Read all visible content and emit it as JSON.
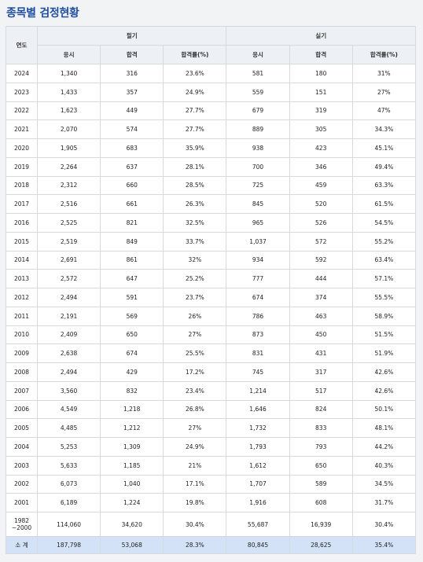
{
  "title": "종목별 검정현황",
  "header": {
    "year": "연도",
    "written": "필기",
    "practical": "실기",
    "applicants": "응시",
    "passed": "합격",
    "rate": "합격률(%)"
  },
  "rows": [
    {
      "year": "2024",
      "w_apply": "1,340",
      "w_pass": "316",
      "w_rate": "23.6%",
      "p_apply": "581",
      "p_pass": "180",
      "p_rate": "31%"
    },
    {
      "year": "2023",
      "w_apply": "1,433",
      "w_pass": "357",
      "w_rate": "24.9%",
      "p_apply": "559",
      "p_pass": "151",
      "p_rate": "27%"
    },
    {
      "year": "2022",
      "w_apply": "1,623",
      "w_pass": "449",
      "w_rate": "27.7%",
      "p_apply": "679",
      "p_pass": "319",
      "p_rate": "47%"
    },
    {
      "year": "2021",
      "w_apply": "2,070",
      "w_pass": "574",
      "w_rate": "27.7%",
      "p_apply": "889",
      "p_pass": "305",
      "p_rate": "34.3%"
    },
    {
      "year": "2020",
      "w_apply": "1,905",
      "w_pass": "683",
      "w_rate": "35.9%",
      "p_apply": "938",
      "p_pass": "423",
      "p_rate": "45.1%"
    },
    {
      "year": "2019",
      "w_apply": "2,264",
      "w_pass": "637",
      "w_rate": "28.1%",
      "p_apply": "700",
      "p_pass": "346",
      "p_rate": "49.4%"
    },
    {
      "year": "2018",
      "w_apply": "2,312",
      "w_pass": "660",
      "w_rate": "28.5%",
      "p_apply": "725",
      "p_pass": "459",
      "p_rate": "63.3%"
    },
    {
      "year": "2017",
      "w_apply": "2,516",
      "w_pass": "661",
      "w_rate": "26.3%",
      "p_apply": "845",
      "p_pass": "520",
      "p_rate": "61.5%"
    },
    {
      "year": "2016",
      "w_apply": "2,525",
      "w_pass": "821",
      "w_rate": "32.5%",
      "p_apply": "965",
      "p_pass": "526",
      "p_rate": "54.5%"
    },
    {
      "year": "2015",
      "w_apply": "2,519",
      "w_pass": "849",
      "w_rate": "33.7%",
      "p_apply": "1,037",
      "p_pass": "572",
      "p_rate": "55.2%"
    },
    {
      "year": "2014",
      "w_apply": "2,691",
      "w_pass": "861",
      "w_rate": "32%",
      "p_apply": "934",
      "p_pass": "592",
      "p_rate": "63.4%"
    },
    {
      "year": "2013",
      "w_apply": "2,572",
      "w_pass": "647",
      "w_rate": "25.2%",
      "p_apply": "777",
      "p_pass": "444",
      "p_rate": "57.1%"
    },
    {
      "year": "2012",
      "w_apply": "2,494",
      "w_pass": "591",
      "w_rate": "23.7%",
      "p_apply": "674",
      "p_pass": "374",
      "p_rate": "55.5%"
    },
    {
      "year": "2011",
      "w_apply": "2,191",
      "w_pass": "569",
      "w_rate": "26%",
      "p_apply": "786",
      "p_pass": "463",
      "p_rate": "58.9%"
    },
    {
      "year": "2010",
      "w_apply": "2,409",
      "w_pass": "650",
      "w_rate": "27%",
      "p_apply": "873",
      "p_pass": "450",
      "p_rate": "51.5%"
    },
    {
      "year": "2009",
      "w_apply": "2,638",
      "w_pass": "674",
      "w_rate": "25.5%",
      "p_apply": "831",
      "p_pass": "431",
      "p_rate": "51.9%"
    },
    {
      "year": "2008",
      "w_apply": "2,494",
      "w_pass": "429",
      "w_rate": "17.2%",
      "p_apply": "745",
      "p_pass": "317",
      "p_rate": "42.6%"
    },
    {
      "year": "2007",
      "w_apply": "3,560",
      "w_pass": "832",
      "w_rate": "23.4%",
      "p_apply": "1,214",
      "p_pass": "517",
      "p_rate": "42.6%"
    },
    {
      "year": "2006",
      "w_apply": "4,549",
      "w_pass": "1,218",
      "w_rate": "26.8%",
      "p_apply": "1,646",
      "p_pass": "824",
      "p_rate": "50.1%"
    },
    {
      "year": "2005",
      "w_apply": "4,485",
      "w_pass": "1,212",
      "w_rate": "27%",
      "p_apply": "1,732",
      "p_pass": "833",
      "p_rate": "48.1%"
    },
    {
      "year": "2004",
      "w_apply": "5,253",
      "w_pass": "1,309",
      "w_rate": "24.9%",
      "p_apply": "1,793",
      "p_pass": "793",
      "p_rate": "44.2%"
    },
    {
      "year": "2003",
      "w_apply": "5,633",
      "w_pass": "1,185",
      "w_rate": "21%",
      "p_apply": "1,612",
      "p_pass": "650",
      "p_rate": "40.3%"
    },
    {
      "year": "2002",
      "w_apply": "6,073",
      "w_pass": "1,040",
      "w_rate": "17.1%",
      "p_apply": "1,707",
      "p_pass": "589",
      "p_rate": "34.5%"
    },
    {
      "year": "2001",
      "w_apply": "6,189",
      "w_pass": "1,224",
      "w_rate": "19.8%",
      "p_apply": "1,916",
      "p_pass": "608",
      "p_rate": "31.7%"
    },
    {
      "year": "1982\n~2000",
      "w_apply": "114,060",
      "w_pass": "34,620",
      "w_rate": "30.4%",
      "p_apply": "55,687",
      "p_pass": "16,939",
      "p_rate": "30.4%",
      "tall": true
    }
  ],
  "total": {
    "year": "소 계",
    "w_apply": "187,798",
    "w_pass": "53,068",
    "w_rate": "28.3%",
    "p_apply": "80,845",
    "p_pass": "28,625",
    "p_rate": "35.4%"
  }
}
